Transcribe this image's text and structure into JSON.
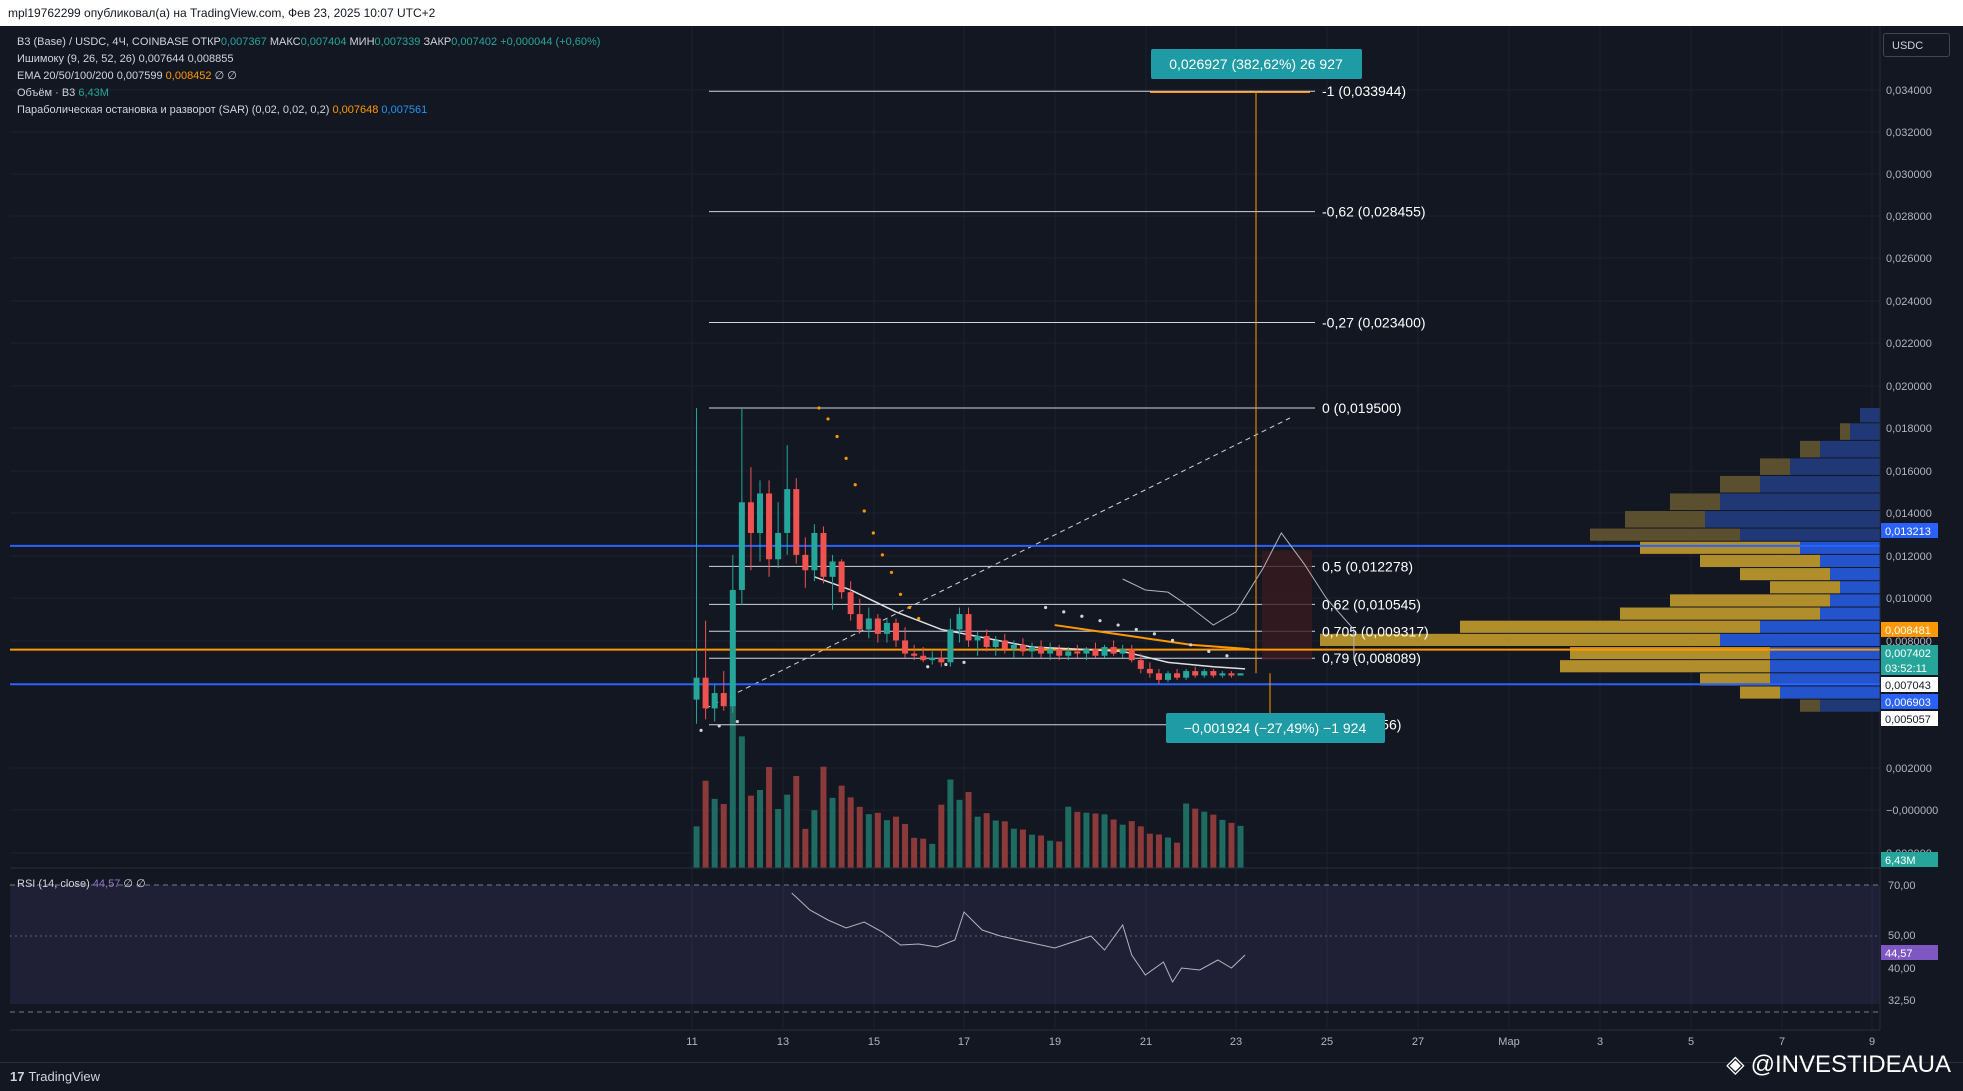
{
  "header": {
    "published": "mpl19762299 опубликовал(а) на TradingView.com, Фев 23, 2025 10:07 UTC+2"
  },
  "legend": {
    "symbol": "B3 (Base) / USDC, 4Ч, COINBASE",
    "ohlc": {
      "o_label": "ОТКР",
      "o": "0,007367",
      "h_label": "МАКС",
      "h": "0,007404",
      "l_label": "МИН",
      "l": "0,007339",
      "c_label": "ЗАКР",
      "c": "0,007402",
      "change": "+0,000044 (+0,60%)"
    },
    "ichimoku": {
      "label": "Ишимоку (9, 26, 52, 26)",
      "v1": "0,007644",
      "v2": "0,008855"
    },
    "ema": {
      "label": "EMA 20/50/100/200",
      "v1": "0,007599",
      "v2": "0,008452",
      "v3": "∅",
      "v4": "∅"
    },
    "volume": {
      "label": "Объём · B3",
      "v": "6,43M"
    },
    "sar": {
      "label": "Параболическая остановка и разворот (SAR) (0,02, 0,02, 0,2)",
      "v1": "0,007648",
      "v2": "0,007561"
    }
  },
  "currency_button": "USDC",
  "rsi_legend": {
    "label": "RSI (14, close)",
    "value": "44,57",
    "e1": "∅",
    "e2": "∅"
  },
  "measure": {
    "top": "0,026927 (382,62%) 26 927",
    "bottom": "−0,001924 (−27,49%) −1 924"
  },
  "footer": {
    "brand": "TradingView"
  },
  "watermark": "@INVESTIDEAUA",
  "colors": {
    "bg": "#131722",
    "up": "#26a69a",
    "down": "#ef5350",
    "orange": "#ff9800",
    "blue": "#2962ff",
    "teal_box": "#1e9ba5",
    "gold": "#b8952c"
  },
  "chart_data": {
    "type": "candlestick",
    "yaxis_ticks": [
      "0,034000",
      "0,032000",
      "0,030000",
      "0,028000",
      "0,026000",
      "0,024000",
      "0,022000",
      "0,020000",
      "0,018000",
      "0,016000",
      "0,014000",
      "0,012000",
      "0,010000",
      "0,008000",
      "0,002000",
      "−0,000000",
      "0,002000"
    ],
    "xaxis_ticks": [
      "11",
      "13",
      "15",
      "17",
      "19",
      "21",
      "23",
      "25",
      "27",
      "Мар",
      "3",
      "5",
      "7",
      "9"
    ],
    "rsi_ticks": [
      "70,00",
      "50,00",
      "40,00",
      "32,50"
    ],
    "price_tags": [
      {
        "value": "0,013213",
        "color": "#2962ff"
      },
      {
        "value": "0,008481",
        "color": "#ff9800"
      },
      {
        "value": "0,007402",
        "color": "#26a69a"
      },
      {
        "value": "03:52:11",
        "color": "#26a69a"
      },
      {
        "value": "0,007043",
        "color": "#ffffff"
      },
      {
        "value": "0,006903",
        "color": "#2962ff"
      },
      {
        "value": "0,005057",
        "color": "#ffffff"
      },
      {
        "value": "6,43M",
        "color": "#26a69a"
      },
      {
        "value": "44,57",
        "color": "#7e57c2"
      }
    ],
    "fib_levels": [
      {
        "label": "-1 (0,033944)",
        "price": 0.033944
      },
      {
        "label": "-0,62 (0,028455)",
        "price": 0.028455
      },
      {
        "label": "-0,27 (0,023400)",
        "price": 0.0234
      },
      {
        "label": "0 (0,019500)",
        "price": 0.0195
      },
      {
        "label": "0,5 (0,012278)",
        "price": 0.012278
      },
      {
        "label": "0,62 (0,010545)",
        "price": 0.010545
      },
      {
        "label": "0,705 (0,009317)",
        "price": 0.009317
      },
      {
        "label": "0,79 (0,008089)",
        "price": 0.008089
      },
      {
        "label": "1 (0,005056)",
        "price": 0.005056
      }
    ],
    "hlines": [
      {
        "price": 0.013213,
        "color": "#2962ff"
      },
      {
        "price": 0.008481,
        "color": "#ff9800"
      },
      {
        "price": 0.006903,
        "color": "#2962ff"
      }
    ],
    "candles": [
      {
        "d": 11.1,
        "o": 0.0062,
        "h": 0.0195,
        "l": 0.0051,
        "c": 0.0072
      },
      {
        "d": 11.3,
        "o": 0.0072,
        "h": 0.0098,
        "l": 0.0053,
        "c": 0.0058
      },
      {
        "d": 11.5,
        "o": 0.0058,
        "h": 0.0069,
        "l": 0.0052,
        "c": 0.0065
      },
      {
        "d": 11.7,
        "o": 0.0065,
        "h": 0.0075,
        "l": 0.0057,
        "c": 0.0059
      },
      {
        "d": 11.9,
        "o": 0.0059,
        "h": 0.0128,
        "l": 0.0056,
        "c": 0.0112
      },
      {
        "d": 12.1,
        "o": 0.0112,
        "h": 0.0195,
        "l": 0.0105,
        "c": 0.0152
      },
      {
        "d": 12.3,
        "o": 0.0152,
        "h": 0.0168,
        "l": 0.0121,
        "c": 0.0138
      },
      {
        "d": 12.5,
        "o": 0.0138,
        "h": 0.0162,
        "l": 0.0125,
        "c": 0.0156
      },
      {
        "d": 12.7,
        "o": 0.0156,
        "h": 0.0162,
        "l": 0.0118,
        "c": 0.0126
      },
      {
        "d": 12.9,
        "o": 0.0126,
        "h": 0.0152,
        "l": 0.0122,
        "c": 0.0138
      },
      {
        "d": 13.1,
        "o": 0.0138,
        "h": 0.0178,
        "l": 0.0128,
        "c": 0.0158
      },
      {
        "d": 13.3,
        "o": 0.0158,
        "h": 0.0163,
        "l": 0.0124,
        "c": 0.0128
      },
      {
        "d": 13.5,
        "o": 0.0128,
        "h": 0.0136,
        "l": 0.0113,
        "c": 0.0121
      },
      {
        "d": 13.7,
        "o": 0.0121,
        "h": 0.0142,
        "l": 0.0116,
        "c": 0.0138
      },
      {
        "d": 13.9,
        "o": 0.0138,
        "h": 0.0141,
        "l": 0.0115,
        "c": 0.0118
      },
      {
        "d": 14.1,
        "o": 0.0118,
        "h": 0.0128,
        "l": 0.0103,
        "c": 0.0125
      },
      {
        "d": 14.3,
        "o": 0.0125,
        "h": 0.0126,
        "l": 0.0108,
        "c": 0.0111
      },
      {
        "d": 14.5,
        "o": 0.0111,
        "h": 0.0116,
        "l": 0.0098,
        "c": 0.0101
      },
      {
        "d": 14.7,
        "o": 0.0101,
        "h": 0.0108,
        "l": 0.0092,
        "c": 0.0094
      },
      {
        "d": 14.9,
        "o": 0.0094,
        "h": 0.0104,
        "l": 0.009,
        "c": 0.0099
      },
      {
        "d": 15.1,
        "o": 0.0099,
        "h": 0.0101,
        "l": 0.0088,
        "c": 0.0092
      },
      {
        "d": 15.3,
        "o": 0.0092,
        "h": 0.0099,
        "l": 0.0088,
        "c": 0.0097
      },
      {
        "d": 15.5,
        "o": 0.0097,
        "h": 0.0099,
        "l": 0.0086,
        "c": 0.0089
      },
      {
        "d": 15.7,
        "o": 0.0089,
        "h": 0.0095,
        "l": 0.0081,
        "c": 0.0083
      },
      {
        "d": 15.9,
        "o": 0.0083,
        "h": 0.0087,
        "l": 0.008,
        "c": 0.0082
      },
      {
        "d": 16.1,
        "o": 0.0082,
        "h": 0.0086,
        "l": 0.0079,
        "c": 0.008
      },
      {
        "d": 16.3,
        "o": 0.008,
        "h": 0.0084,
        "l": 0.0078,
        "c": 0.0081
      },
      {
        "d": 16.5,
        "o": 0.0081,
        "h": 0.0085,
        "l": 0.0077,
        "c": 0.0079
      },
      {
        "d": 16.7,
        "o": 0.0079,
        "h": 0.0099,
        "l": 0.0077,
        "c": 0.0094
      },
      {
        "d": 16.9,
        "o": 0.0094,
        "h": 0.0104,
        "l": 0.0088,
        "c": 0.0101
      },
      {
        "d": 17.1,
        "o": 0.0101,
        "h": 0.0104,
        "l": 0.0086,
        "c": 0.0089
      },
      {
        "d": 17.3,
        "o": 0.0089,
        "h": 0.0093,
        "l": 0.0082,
        "c": 0.0091
      },
      {
        "d": 17.5,
        "o": 0.0091,
        "h": 0.0094,
        "l": 0.0084,
        "c": 0.0086
      },
      {
        "d": 17.7,
        "o": 0.0086,
        "h": 0.0091,
        "l": 0.0082,
        "c": 0.0089
      },
      {
        "d": 17.9,
        "o": 0.0089,
        "h": 0.0092,
        "l": 0.0083,
        "c": 0.0085
      },
      {
        "d": 18.1,
        "o": 0.0085,
        "h": 0.0089,
        "l": 0.0081,
        "c": 0.0087
      },
      {
        "d": 18.3,
        "o": 0.0087,
        "h": 0.009,
        "l": 0.0082,
        "c": 0.0084
      },
      {
        "d": 18.5,
        "o": 0.0084,
        "h": 0.0088,
        "l": 0.0081,
        "c": 0.0086
      },
      {
        "d": 18.7,
        "o": 0.0086,
        "h": 0.0089,
        "l": 0.0081,
        "c": 0.0083
      },
      {
        "d": 18.9,
        "o": 0.0083,
        "h": 0.0088,
        "l": 0.008,
        "c": 0.0085
      },
      {
        "d": 19.1,
        "o": 0.0085,
        "h": 0.0087,
        "l": 0.008,
        "c": 0.0082
      },
      {
        "d": 19.3,
        "o": 0.0082,
        "h": 0.0086,
        "l": 0.008,
        "c": 0.0084
      },
      {
        "d": 19.5,
        "o": 0.0084,
        "h": 0.0087,
        "l": 0.0081,
        "c": 0.0083
      },
      {
        "d": 19.7,
        "o": 0.0083,
        "h": 0.0086,
        "l": 0.008,
        "c": 0.0085
      },
      {
        "d": 19.9,
        "o": 0.0085,
        "h": 0.0088,
        "l": 0.0081,
        "c": 0.0082
      },
      {
        "d": 20.1,
        "o": 0.0082,
        "h": 0.0087,
        "l": 0.0081,
        "c": 0.0086
      },
      {
        "d": 20.3,
        "o": 0.0086,
        "h": 0.0089,
        "l": 0.0082,
        "c": 0.0083
      },
      {
        "d": 20.5,
        "o": 0.0083,
        "h": 0.0087,
        "l": 0.0081,
        "c": 0.0085
      },
      {
        "d": 20.7,
        "o": 0.0085,
        "h": 0.0087,
        "l": 0.0079,
        "c": 0.008
      },
      {
        "d": 20.9,
        "o": 0.008,
        "h": 0.0083,
        "l": 0.0074,
        "c": 0.0076
      },
      {
        "d": 21.1,
        "o": 0.0076,
        "h": 0.0079,
        "l": 0.0072,
        "c": 0.0074
      },
      {
        "d": 21.3,
        "o": 0.0074,
        "h": 0.0076,
        "l": 0.0069,
        "c": 0.0071
      },
      {
        "d": 21.5,
        "o": 0.0071,
        "h": 0.0075,
        "l": 0.007,
        "c": 0.0074
      },
      {
        "d": 21.7,
        "o": 0.0074,
        "h": 0.0076,
        "l": 0.0071,
        "c": 0.0072
      },
      {
        "d": 21.9,
        "o": 0.0072,
        "h": 0.0076,
        "l": 0.0071,
        "c": 0.0075
      },
      {
        "d": 22.1,
        "o": 0.0075,
        "h": 0.0077,
        "l": 0.0072,
        "c": 0.0073
      },
      {
        "d": 22.3,
        "o": 0.0073,
        "h": 0.0076,
        "l": 0.0072,
        "c": 0.0075
      },
      {
        "d": 22.5,
        "o": 0.0075,
        "h": 0.0076,
        "l": 0.0072,
        "c": 0.0073
      },
      {
        "d": 22.7,
        "o": 0.0073,
        "h": 0.0075,
        "l": 0.0072,
        "c": 0.0074
      },
      {
        "d": 22.9,
        "o": 0.0074,
        "h": 0.0075,
        "l": 0.0072,
        "c": 0.0073
      },
      {
        "d": 23.1,
        "o": 0.0073,
        "h": 0.0074,
        "l": 0.0073,
        "c": 0.0074
      }
    ],
    "volume_labels": [
      "6,43M"
    ]
  }
}
